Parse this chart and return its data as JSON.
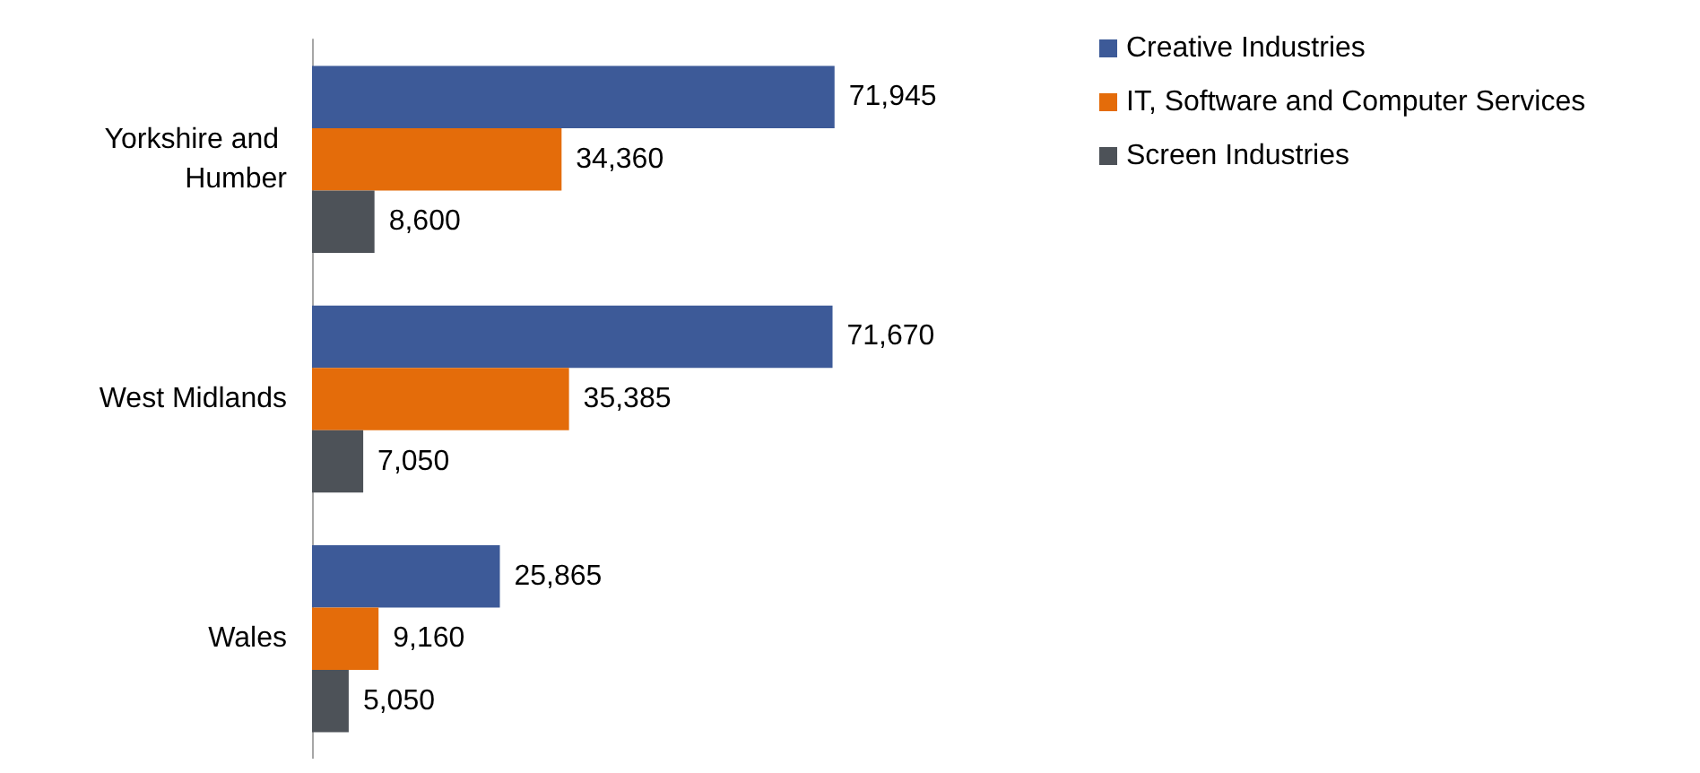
{
  "chart_data": {
    "type": "bar",
    "orientation": "horizontal",
    "categories": [
      "Yorkshire and Humber",
      "West Midlands",
      "Wales"
    ],
    "series": [
      {
        "name": "Creative Industries",
        "color": "#3d5a98",
        "values": [
          71945,
          71670,
          25865
        ],
        "value_labels": [
          "71,945",
          "71,670",
          "25,865"
        ]
      },
      {
        "name": "IT, Software and Computer Services",
        "color": "#e46c0a",
        "values": [
          34360,
          35385,
          9160
        ],
        "value_labels": [
          "34,360",
          "35,385",
          "9,160"
        ]
      },
      {
        "name": "Screen Industries",
        "color": "#4d5258",
        "values": [
          8600,
          7050,
          5050
        ],
        "value_labels": [
          "8,600",
          "7,050",
          "5,050"
        ]
      }
    ],
    "legend": "top right",
    "tick_labels": "y"
  }
}
